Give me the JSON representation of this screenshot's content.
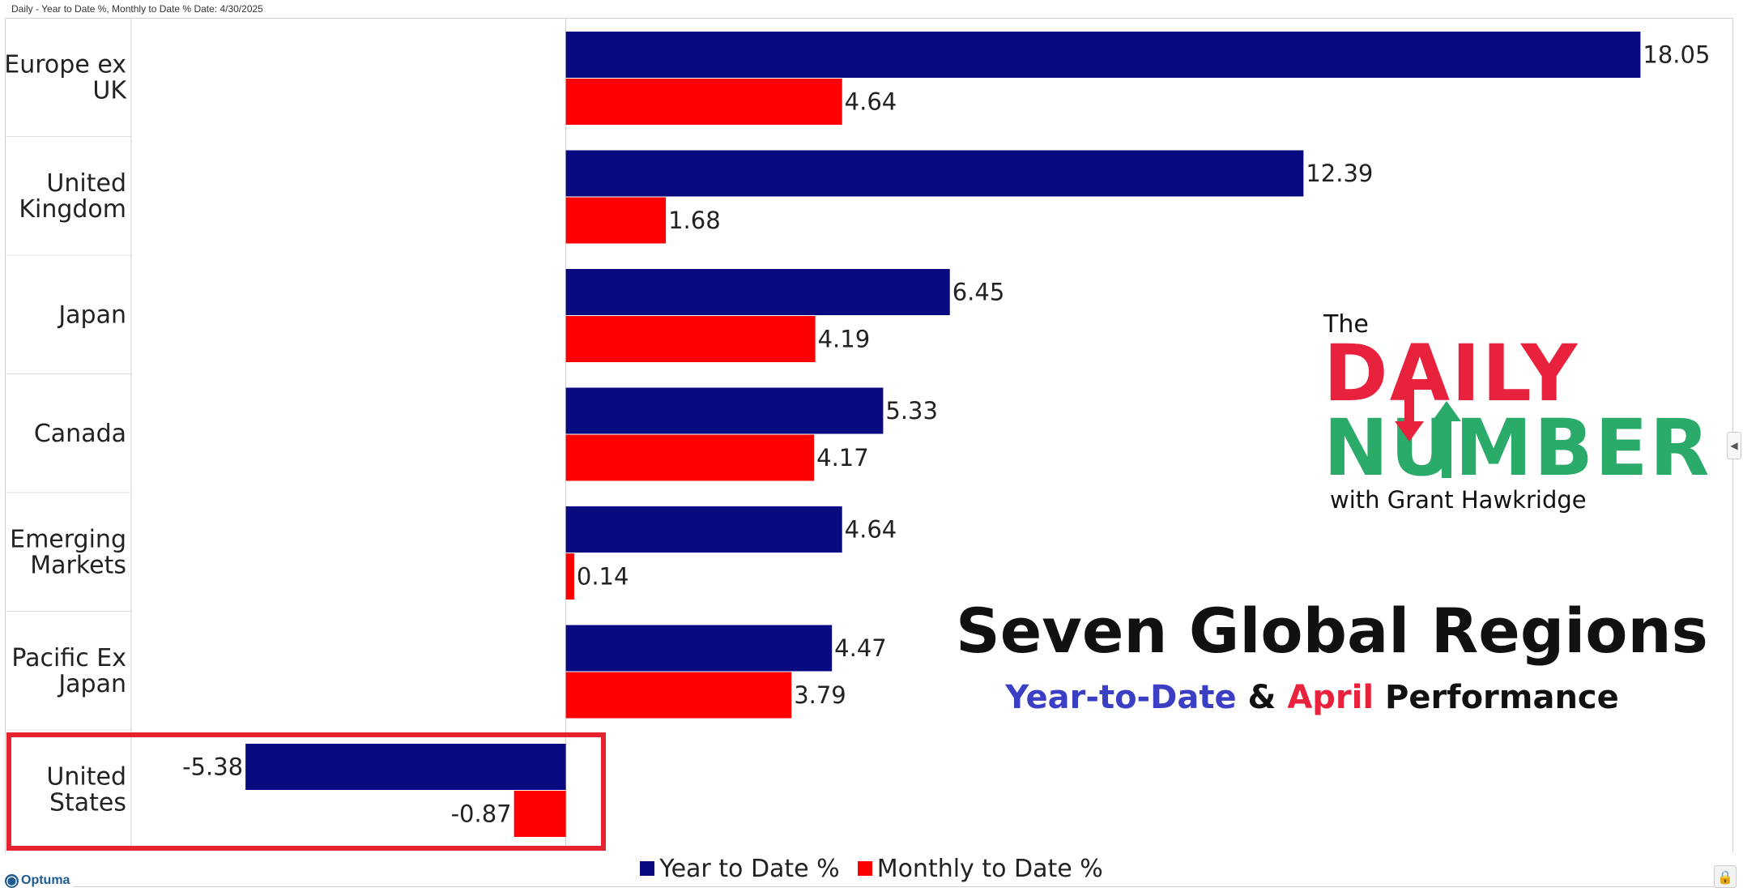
{
  "header": {
    "text": "Daily - Year to Date %, Monthly to Date %     Date: 4/30/2025"
  },
  "chart_data": {
    "type": "bar",
    "orientation": "horizontal",
    "categories": [
      [
        "Europe ex",
        "UK"
      ],
      [
        "United",
        "Kingdom"
      ],
      [
        "Japan"
      ],
      [
        "Canada"
      ],
      [
        "Emerging",
        "Markets"
      ],
      [
        "Pacific Ex",
        "Japan"
      ],
      [
        "United",
        "States"
      ]
    ],
    "series": [
      {
        "name": "Year to Date %",
        "color": "#0a0a80",
        "values": [
          18.05,
          12.39,
          6.45,
          5.33,
          4.64,
          4.47,
          -5.38
        ],
        "labels": [
          "18.05",
          "12.39",
          "6.45",
          "5.33",
          "4.64",
          "4.47",
          "-5.38"
        ]
      },
      {
        "name": "Monthly to Date %",
        "color": "#ff0000",
        "values": [
          4.64,
          1.68,
          4.19,
          4.17,
          0.14,
          3.79,
          -0.87
        ],
        "labels": [
          "4.64",
          "1.68",
          "4.19",
          "4.17",
          "0.14",
          "3.79",
          "-0.87"
        ]
      }
    ],
    "xlim": [
      -7.3,
      19.5
    ],
    "legend": "bottom-center",
    "grid": false,
    "highlight_category": "United States"
  },
  "legend": {
    "items": [
      {
        "label": "Year to Date %",
        "color": "#0a0a80"
      },
      {
        "label": "Monthly to Date %",
        "color": "#ff0000"
      }
    ]
  },
  "branding": {
    "optuma_text": "Optuma",
    "logo_the": "The",
    "logo_daily": "DAILY",
    "logo_number": "NUMBER",
    "logo_with": "with Grant Hawkridge"
  },
  "titles": {
    "main": "Seven Global Regions",
    "sub_ytd": "Year-to-Date",
    "sub_amp": " & ",
    "sub_april": "April",
    "sub_rest": " Performance",
    "ytd_color": "#3b3fc4",
    "april_color": "#e8223c"
  },
  "icons": {
    "lock": "lock-icon",
    "collapse": "chevron-left-icon"
  }
}
